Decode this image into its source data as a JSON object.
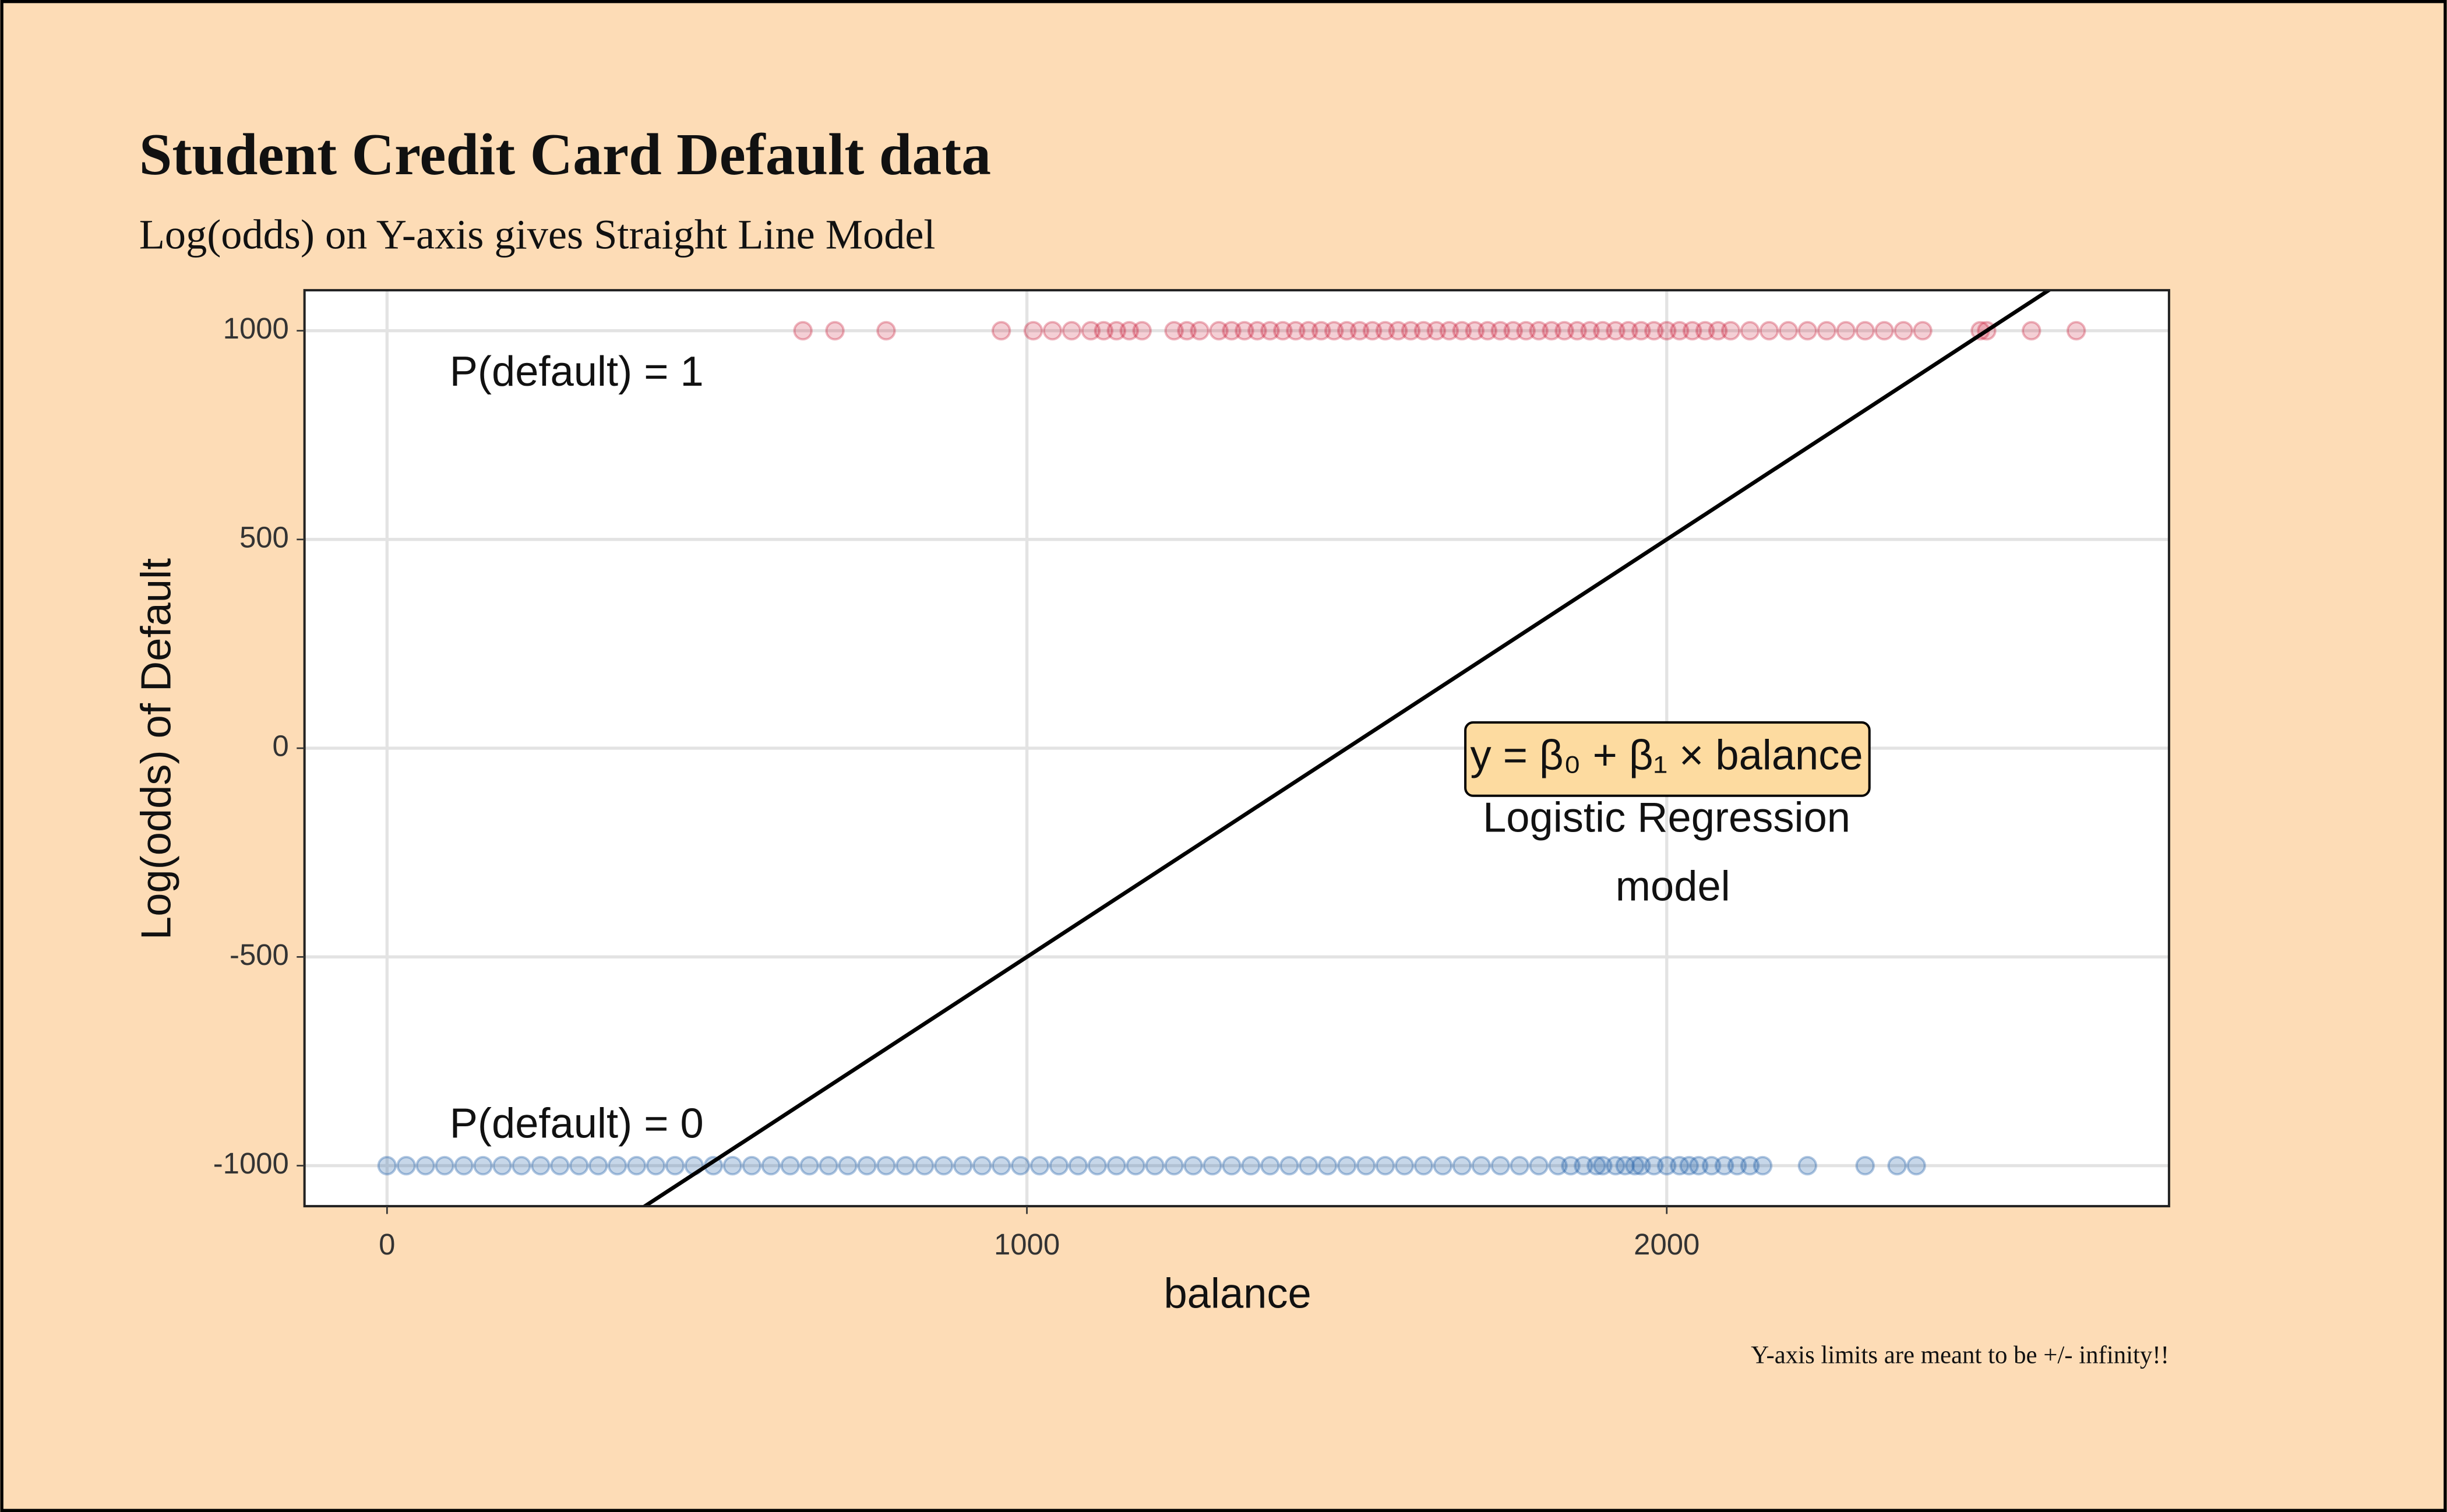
{
  "chart_data": {
    "type": "scatter",
    "title": "Student Credit Card Default data",
    "subtitle": "Log(odds) on Y-axis gives Straight Line Model",
    "caption": "Y-axis limits are meant to be +/- infinity!!",
    "x_label": "balance",
    "y_label": "Log(odds) of Default",
    "xlim": [
      -129,
      2785
    ],
    "ylim": [
      -1097,
      1097
    ],
    "xticks": [
      0,
      1000,
      2000
    ],
    "yticks": [
      -1000,
      -500,
      0,
      500,
      1000
    ],
    "grid": true,
    "series": [
      {
        "color": "#c8102e",
        "x": [
          650,
          700,
          780,
          960,
          1010,
          1040,
          1070,
          1100,
          1120,
          1140,
          1160,
          1180,
          1230,
          1250,
          1270,
          1300,
          1320,
          1340,
          1360,
          1380,
          1400,
          1420,
          1440,
          1460,
          1480,
          1500,
          1520,
          1540,
          1560,
          1580,
          1600,
          1620,
          1640,
          1660,
          1680,
          1700,
          1720,
          1740,
          1760,
          1780,
          1800,
          1820,
          1840,
          1860,
          1880,
          1900,
          1920,
          1940,
          1960,
          1980,
          2000,
          2020,
          2040,
          2060,
          2080,
          2100,
          2130,
          2160,
          2190,
          2220,
          2250,
          2280,
          2310,
          2340,
          2370,
          2400,
          2490,
          2500,
          2570,
          2640
        ],
        "values": [
          1000,
          1000,
          1000,
          1000,
          1000,
          1000,
          1000,
          1000,
          1000,
          1000,
          1000,
          1000,
          1000,
          1000,
          1000,
          1000,
          1000,
          1000,
          1000,
          1000,
          1000,
          1000,
          1000,
          1000,
          1000,
          1000,
          1000,
          1000,
          1000,
          1000,
          1000,
          1000,
          1000,
          1000,
          1000,
          1000,
          1000,
          1000,
          1000,
          1000,
          1000,
          1000,
          1000,
          1000,
          1000,
          1000,
          1000,
          1000,
          1000,
          1000,
          1000,
          1000,
          1000,
          1000,
          1000,
          1000,
          1000,
          1000,
          1000,
          1000,
          1000,
          1000,
          1000,
          1000,
          1000,
          1000,
          1000,
          1000,
          1000,
          1000
        ]
      },
      {
        "color": "#1f5fa8",
        "x": [
          0,
          30,
          60,
          90,
          120,
          150,
          180,
          210,
          240,
          270,
          300,
          330,
          360,
          390,
          420,
          450,
          480,
          510,
          540,
          570,
          600,
          630,
          660,
          690,
          720,
          750,
          780,
          810,
          840,
          870,
          900,
          930,
          960,
          990,
          1020,
          1050,
          1080,
          1110,
          1140,
          1170,
          1200,
          1230,
          1260,
          1290,
          1320,
          1350,
          1380,
          1410,
          1440,
          1470,
          1500,
          1530,
          1560,
          1590,
          1620,
          1650,
          1680,
          1710,
          1740,
          1770,
          1800,
          1830,
          1850,
          1870,
          1890,
          1900,
          1920,
          1935,
          1950,
          1960,
          1980,
          2000,
          2020,
          2035,
          2050,
          2070,
          2090,
          2110,
          2130,
          2150,
          2220,
          2310,
          2360,
          2390
        ],
        "values": [
          -1000,
          -1000,
          -1000,
          -1000,
          -1000,
          -1000,
          -1000,
          -1000,
          -1000,
          -1000,
          -1000,
          -1000,
          -1000,
          -1000,
          -1000,
          -1000,
          -1000,
          -1000,
          -1000,
          -1000,
          -1000,
          -1000,
          -1000,
          -1000,
          -1000,
          -1000,
          -1000,
          -1000,
          -1000,
          -1000,
          -1000,
          -1000,
          -1000,
          -1000,
          -1000,
          -1000,
          -1000,
          -1000,
          -1000,
          -1000,
          -1000,
          -1000,
          -1000,
          -1000,
          -1000,
          -1000,
          -1000,
          -1000,
          -1000,
          -1000,
          -1000,
          -1000,
          -1000,
          -1000,
          -1000,
          -1000,
          -1000,
          -1000,
          -1000,
          -1000,
          -1000,
          -1000,
          -1000,
          -1000,
          -1000,
          -1000,
          -1000,
          -1000,
          -1000,
          -1000,
          -1000,
          -1000,
          -1000,
          -1000,
          -1000,
          -1000,
          -1000,
          -1000,
          -1000,
          -1000,
          -1000,
          -1000,
          -1000,
          -1000
        ]
      },
      {
        "type": "line",
        "color": "#000000",
        "x": [
          0,
          2700
        ],
        "values": [
          -1500,
          1200
        ]
      }
    ],
    "annotations": [
      "P(default) = 1",
      "P(default) = 0",
      "y = β₀ + β₁ × balance",
      "Logistic Regression",
      "model"
    ]
  }
}
